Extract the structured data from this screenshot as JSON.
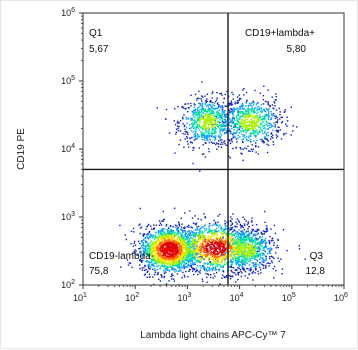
{
  "chart_data": {
    "type": "scatter",
    "subtype": "flow-cytometry-density-dot-plot",
    "xlabel": "Lambda light chains APC-Cy™ 7",
    "ylabel": "CD19 PE",
    "x_scale": "log",
    "y_scale": "log",
    "xlim": [
      10,
      1000000
    ],
    "ylim": [
      100,
      1000000
    ],
    "x_ticks": [
      {
        "value": 10,
        "base": "10",
        "exp": "1"
      },
      {
        "value": 100,
        "base": "10",
        "exp": "2"
      },
      {
        "value": 1000,
        "base": "10",
        "exp": "3"
      },
      {
        "value": 10000,
        "base": "10",
        "exp": "4"
      },
      {
        "value": 100000,
        "base": "10",
        "exp": "5"
      },
      {
        "value": 1000000,
        "base": "10",
        "exp": "6"
      }
    ],
    "y_ticks": [
      {
        "value": 100,
        "base": "10",
        "exp": "2"
      },
      {
        "value": 1000,
        "base": "10",
        "exp": "3"
      },
      {
        "value": 10000,
        "base": "10",
        "exp": "4"
      },
      {
        "value": 100000,
        "base": "10",
        "exp": "5"
      },
      {
        "value": 1000000,
        "base": "10",
        "exp": "6"
      }
    ],
    "gate": {
      "x": 6000,
      "y": 5000
    },
    "quadrants": [
      {
        "name": "Q1",
        "value": "5,67",
        "position": "top-left"
      },
      {
        "name": "CD19+lambda+",
        "value": "5,80",
        "position": "top-right"
      },
      {
        "name": "CD19-lambda-",
        "value": "75,8",
        "position": "bottom-left"
      },
      {
        "name": "Q3",
        "value": "12,8",
        "position": "bottom-right"
      }
    ],
    "populations": [
      {
        "cx": 2500,
        "cy": 25000,
        "sx": 0.28,
        "sy": 0.18,
        "n": 700
      },
      {
        "cx": 16000,
        "cy": 25000,
        "sx": 0.3,
        "sy": 0.18,
        "n": 700
      },
      {
        "cx": 450,
        "cy": 330,
        "sx": 0.28,
        "sy": 0.17,
        "n": 1600
      },
      {
        "cx": 3500,
        "cy": 350,
        "sx": 0.4,
        "sy": 0.18,
        "n": 1300
      },
      {
        "cx": 14000,
        "cy": 330,
        "sx": 0.28,
        "sy": 0.17,
        "n": 700
      }
    ],
    "density_colors": [
      "#0a1fbf",
      "#00a0ff",
      "#00e0a0",
      "#a8f000",
      "#ffe000",
      "#ff6a00",
      "#e00000"
    ]
  }
}
